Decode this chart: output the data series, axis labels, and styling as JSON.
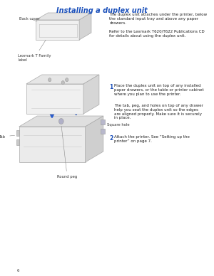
{
  "title": "Installing a duplex unit",
  "title_color": "#1a4fba",
  "title_fontsize": 7.0,
  "bg_color": "#ffffff",
  "right_text_1": "The duplex unit attaches under the printer, below\nthe standard input tray and above any paper\ndrawers.",
  "right_text_2": "Refer to the Lexmark T620/T622 Publications CD\nfor details about using the duplex unit.",
  "step1_num": "1",
  "step1_text": "Place the duplex unit on top of any installed\npaper drawers, or the table or printer cabinet\nwhere you plan to use the printer.",
  "step1_sub": "The tab, peg, and holes on top of any drawer\nhelp you seat the duplex unit so the edges\nare aligned properly. Make sure it is securely\nin place.",
  "step2_num": "2",
  "step2_text": "Attach the printer. See “Setting up the\nprinter” on page 7.",
  "label_back_cover": "Back cover",
  "label_lexmark": "Lexmark T Family\nlabel",
  "label_tab": "Tab",
  "label_square_hole": "Square hole",
  "label_round_peg": "Round peg",
  "page_num": "6",
  "arrow_color": "#2a5ccc",
  "outline_color": "#999999",
  "small_fontsize": 4.0,
  "label_fontsize": 3.8,
  "step_num_color": "#1a4fba",
  "step_fontsize": 4.0,
  "step_num_fontsize": 5.5
}
